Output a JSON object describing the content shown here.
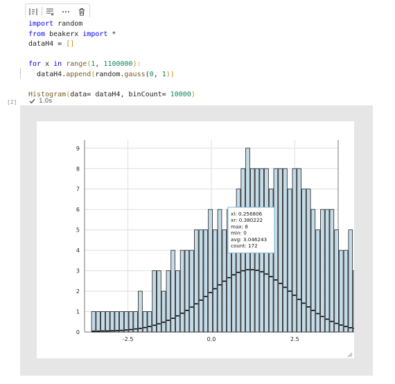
{
  "toolbar": {
    "icons": [
      "run-by-line-icon",
      "clear-output-icon",
      "more-icon",
      "delete-icon"
    ]
  },
  "code": {
    "line1": {
      "kw": "import",
      "rest": " random"
    },
    "line2": {
      "kw1": "from",
      "mod": " beakerx ",
      "kw2": "import",
      "rest": " *"
    },
    "line3": {
      "text": "dataH4 = ",
      "brackets": "[]"
    },
    "line5": {
      "kw": "for",
      "a": " x ",
      "kw2": "in",
      "b": " ",
      "fn": "range",
      "open": "(",
      "n1": "1",
      "comma": ", ",
      "n2": "1100000",
      "close": "):"
    },
    "line6": {
      "a": "dataH4.",
      "fn1": "append",
      "open": "(",
      "b": "random.",
      "fn2": "gauss",
      "open2": "(",
      "n1": "0",
      "comma": ", ",
      "n2": "1",
      "close": "))"
    },
    "line8": {
      "fn": "Histogram",
      "open": "(",
      "a": "data= dataH4, binCount= ",
      "n": "10000",
      "close": ")"
    }
  },
  "cell": {
    "exec_count": "[2]",
    "duration": "1.0s"
  },
  "chart_data": {
    "type": "bar",
    "xlim": [
      -3.8,
      3.8
    ],
    "ylim": [
      0,
      9.4
    ],
    "xticks": [
      "-2.5",
      "0.0",
      "2.5"
    ],
    "yticks": [
      "0",
      "1",
      "2",
      "3",
      "4",
      "5",
      "6",
      "7",
      "8",
      "9"
    ],
    "bin_start": -3.6,
    "bin_width": 0.14,
    "counts": [
      1,
      1,
      1,
      1,
      1,
      1,
      1,
      1,
      1,
      1,
      2,
      1,
      1,
      3,
      3,
      2,
      3,
      4,
      3,
      4,
      4,
      4,
      5,
      5,
      5,
      6,
      5,
      6,
      5,
      6,
      6,
      7,
      8,
      9,
      8,
      8,
      8,
      8,
      7,
      8,
      8,
      8,
      7,
      8,
      8,
      7,
      7,
      6,
      5,
      6,
      6,
      6,
      5,
      4,
      4,
      5,
      3,
      2,
      2,
      2,
      2,
      1,
      1,
      1,
      1,
      1,
      1,
      1,
      1,
      1
    ],
    "avgs": [
      0.04,
      0.04,
      0.05,
      0.05,
      0.06,
      0.07,
      0.08,
      0.1,
      0.12,
      0.15,
      0.18,
      0.22,
      0.27,
      0.33,
      0.4,
      0.48,
      0.57,
      0.67,
      0.79,
      0.92,
      1.06,
      1.22,
      1.38,
      1.56,
      1.74,
      1.93,
      2.12,
      2.31,
      2.49,
      2.66,
      2.8,
      2.92,
      3.0,
      3.05,
      3.05,
      3.02,
      2.95,
      2.84,
      2.71,
      2.55,
      2.38,
      2.19,
      2.0,
      1.8,
      1.6,
      1.41,
      1.23,
      1.06,
      0.9,
      0.76,
      0.63,
      0.52,
      0.42,
      0.34,
      0.27,
      0.21,
      0.17,
      0.13,
      0.1,
      0.08,
      0.06,
      0.05,
      0.04,
      0.04,
      0.03,
      0.03,
      0.03,
      0.03,
      0.03,
      0.03
    ],
    "tooltip": {
      "lines": [
        "xl: 0.256806",
        "xr: 0.380222",
        "max: 8",
        "min: 0",
        "avg: 3.046243",
        "count: 172"
      ]
    },
    "colors": {
      "bar_fill": "#c5dce8",
      "bar_stroke": "#1a1a1a",
      "grid": "#dedede",
      "tooltip_border": "#7db3d5"
    }
  }
}
